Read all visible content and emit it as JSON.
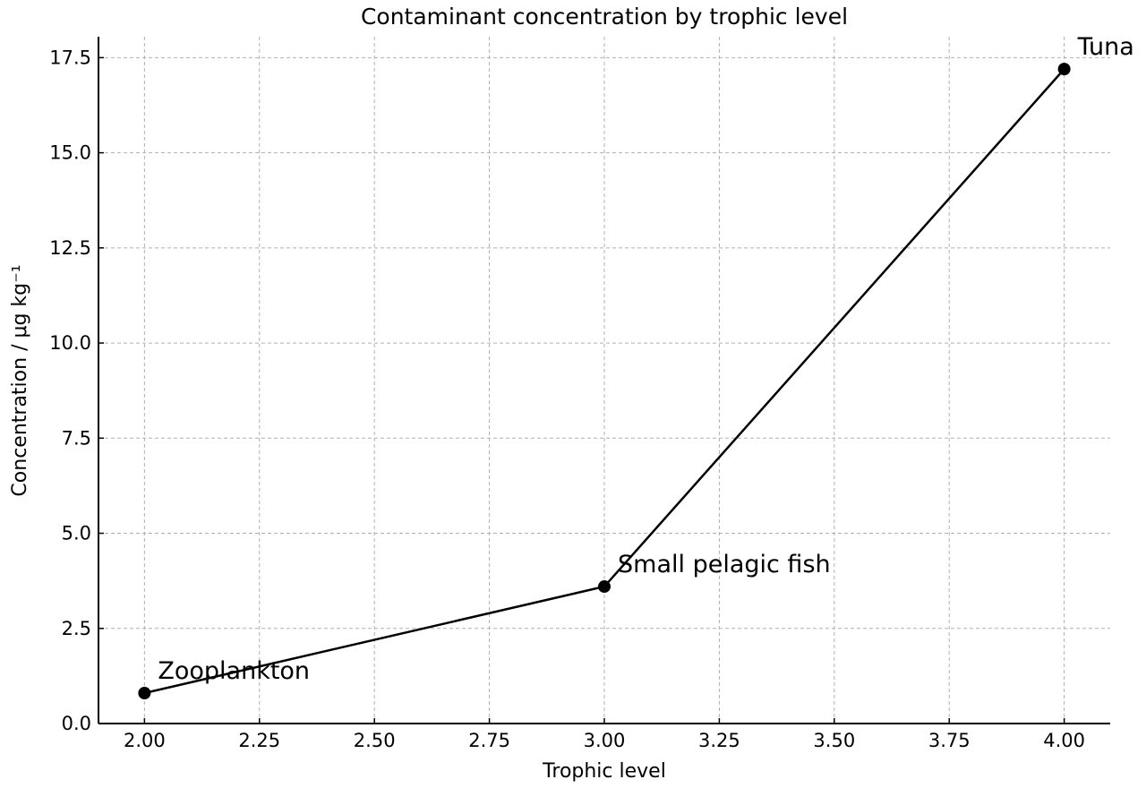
{
  "chart_data": {
    "type": "line",
    "title": "Contaminant concentration by trophic level",
    "xlabel": "Trophic level",
    "ylabel": "Concentration / μg kg⁻¹",
    "xlim": [
      1.9,
      4.1
    ],
    "ylim": [
      0,
      18.05
    ],
    "xticks": [
      2.0,
      2.25,
      2.5,
      2.75,
      3.0,
      3.25,
      3.5,
      3.75,
      4.0
    ],
    "xtick_labels": [
      "2.00",
      "2.25",
      "2.50",
      "2.75",
      "3.00",
      "3.25",
      "3.50",
      "3.75",
      "4.00"
    ],
    "yticks": [
      0,
      2.5,
      5.0,
      7.5,
      10.0,
      12.5,
      15.0,
      17.5
    ],
    "ytick_labels": [
      "0.0",
      "2.5",
      "5.0",
      "7.5",
      "10.0",
      "12.5",
      "15.0",
      "17.5"
    ],
    "grid": true,
    "line_color": "#000000",
    "series": [
      {
        "x": [
          2.0,
          3.0,
          4.0
        ],
        "y": [
          0.8,
          3.6,
          17.2
        ],
        "labels": [
          "Zooplankton",
          "Small pelagic fish",
          "Tuna"
        ]
      }
    ]
  }
}
